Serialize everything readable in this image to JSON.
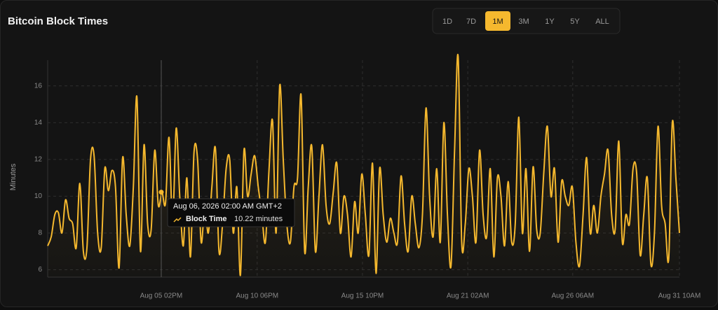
{
  "chart_data": {
    "type": "line",
    "title": "Bitcoin Block Times",
    "range_buttons": [
      "1D",
      "7D",
      "1M",
      "3M",
      "1Y",
      "5Y",
      "ALL"
    ],
    "active_range": "1M",
    "y_label": "Minutes",
    "series": [
      {
        "name": "Block Time",
        "color": "#f5b82e",
        "values": [
          7.3,
          7.8,
          9,
          9.1,
          8,
          9.8,
          8.8,
          8.5,
          7.2,
          10.7,
          7,
          7.2,
          12,
          12.2,
          8,
          7.2,
          11.5,
          10.3,
          11.4,
          10.5,
          6.1,
          12.1,
          9,
          7.3,
          10.5,
          15.4,
          7,
          12.8,
          8.5,
          8.2,
          12.5,
          9.5,
          10.22,
          9.6,
          13.2,
          8.5,
          13.7,
          10,
          7.3,
          11,
          6.7,
          12.4,
          12,
          7.5,
          9.5,
          8,
          10.5,
          12.6,
          7,
          8.5,
          11.5,
          12,
          8,
          10.5,
          5.7,
          12.5,
          10,
          11.2,
          12.2,
          10.5,
          9,
          7.5,
          11.4,
          14.1,
          8,
          16,
          12,
          8.5,
          7.5,
          10.5,
          11,
          15.5,
          7,
          10.5,
          12.7,
          7,
          10,
          12.8,
          9.5,
          8.5,
          10.2,
          11.8,
          8,
          10,
          9,
          6.7,
          9.7,
          8,
          11.2,
          9,
          6.8,
          11.8,
          5.8,
          11.5,
          9,
          7.5,
          8.8,
          8,
          7.5,
          11.1,
          8.5,
          7,
          10,
          8.5,
          7.2,
          9,
          14.8,
          10,
          7.8,
          11.5,
          7.5,
          14,
          9,
          6.2,
          12.5,
          17.6,
          7.5,
          8.5,
          11.5,
          10,
          7.5,
          12.5,
          9,
          7.8,
          11.5,
          6.7,
          11,
          10,
          7.3,
          10.8,
          7.5,
          8.5,
          14.3,
          8,
          11.5,
          7,
          11.6,
          8.2,
          8,
          11.3,
          13.8,
          10,
          11.5,
          7.5,
          10.8,
          10,
          9.5,
          10.5,
          7.5,
          6.2,
          9,
          12.1,
          8,
          9.5,
          8,
          10,
          11.2,
          12.5,
          9,
          8.2,
          13,
          7.5,
          9,
          8.5,
          11.5,
          11.3,
          6.8,
          9,
          11,
          6.3,
          8,
          13.8,
          9.5,
          8.5,
          6.6,
          14,
          11,
          8
        ]
      }
    ],
    "xlim": [
      0,
      177
    ],
    "xticks": [
      {
        "value": 31.8,
        "label": "Aug 05 02PM"
      },
      {
        "value": 58.7,
        "label": "Aug 10 06PM"
      },
      {
        "value": 88.2,
        "label": "Aug 15 10PM"
      },
      {
        "value": 117.7,
        "label": "Aug 21 02AM"
      },
      {
        "value": 147.1,
        "label": "Aug 26 06AM"
      },
      {
        "value": 177,
        "label": "Aug 31 10AM"
      }
    ],
    "ylim": [
      5.6,
      17.4
    ],
    "yticks": [
      6,
      8,
      10,
      12,
      14,
      16
    ],
    "grid": true,
    "tooltip": {
      "x": "Aug 06, 2026 02:00 AM GMT+2",
      "series": "Block Time",
      "value": 10.22,
      "value_label": "10.22 minutes"
    }
  }
}
